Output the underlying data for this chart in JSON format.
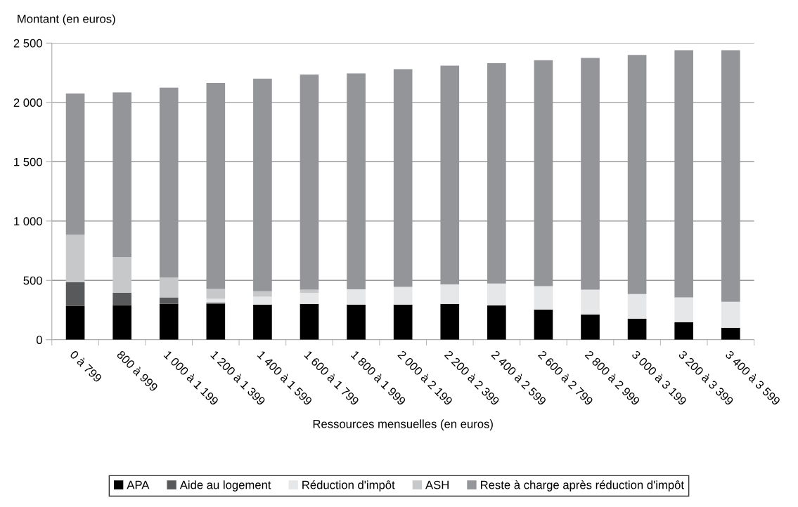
{
  "chart_data": {
    "type": "bar",
    "stacked": true,
    "ylabel": "Montant (en euros)",
    "xlabel": "Ressources mensuelles (en euros)",
    "categories": [
      "0 à 799",
      "800 à 999",
      "1 000 à 1 199",
      "1 200 à 1 399",
      "1 400 à 1 599",
      "1 600 à 1 799",
      "1 800 à 1 999",
      "2 000 à 2 199",
      "2 200 à 2 399",
      "2 400 à 2 599",
      "2 600 à 2 799",
      "2 800 à 2 999",
      "3 000 à 3 199",
      "3 200 à 3 399",
      "3 400 à 3 599"
    ],
    "series": [
      {
        "name": "APA",
        "color": "#000000",
        "values": [
          285,
          290,
          302,
          302,
          296,
          302,
          296,
          296,
          302,
          288,
          255,
          213,
          178,
          148,
          101
        ]
      },
      {
        "name": "Aide au logement",
        "color": "#58595b",
        "values": [
          200,
          107,
          54,
          12,
          0,
          0,
          0,
          0,
          0,
          0,
          0,
          0,
          0,
          0,
          0
        ]
      },
      {
        "name": "Réduction d'impôt",
        "color": "#e6e7e8",
        "values": [
          0,
          0,
          0,
          30,
          66,
          93,
          129,
          149,
          164,
          186,
          196,
          208,
          207,
          208,
          219
        ]
      },
      {
        "name": "ASH",
        "color": "#c7c8ca",
        "values": [
          400,
          298,
          168,
          83,
          47,
          26,
          0,
          0,
          0,
          0,
          0,
          0,
          0,
          0,
          0
        ]
      },
      {
        "name": "Reste à charge après réduction d'impôt",
        "color": "#939598",
        "values": [
          1190,
          1390,
          1601,
          1738,
          1791,
          1814,
          1820,
          1835,
          1844,
          1856,
          1904,
          1954,
          2015,
          2084,
          2120
        ]
      }
    ],
    "ylim": [
      0,
      2500
    ],
    "yticks": [
      0,
      {
        "value": 500,
        "label": "500"
      },
      {
        "value": 1000,
        "label": "1 000"
      },
      {
        "value": 1500,
        "label": "1 500"
      },
      {
        "value": 2000,
        "label": "2 000"
      },
      {
        "value": 2500,
        "label": "2 500"
      }
    ],
    "grid": "y",
    "legend": "bottom"
  }
}
